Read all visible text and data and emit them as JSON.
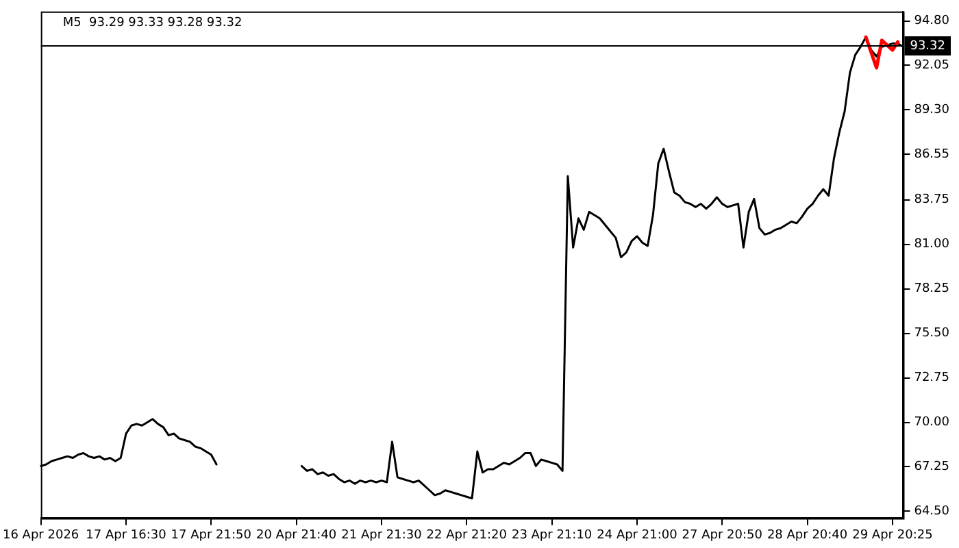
{
  "chart_data": {
    "type": "line",
    "title": "M5  93.29 93.33 93.28 93.32",
    "categories": [
      "16 Apr 2026",
      null,
      null,
      null,
      null,
      null,
      null,
      null,
      null,
      null,
      null,
      null,
      null,
      null,
      null,
      null,
      "17 Apr 16:30",
      null,
      null,
      null,
      null,
      null,
      null,
      null,
      null,
      null,
      null,
      null,
      null,
      null,
      null,
      null,
      "17 Apr 21:50",
      null,
      null,
      null,
      null,
      null,
      null,
      null,
      null,
      null,
      null,
      null,
      null,
      null,
      null,
      null,
      "20 Apr 21:40",
      null,
      null,
      null,
      null,
      null,
      null,
      null,
      null,
      null,
      null,
      null,
      null,
      null,
      null,
      null,
      "21 Apr 21:30",
      null,
      null,
      null,
      null,
      null,
      null,
      null,
      null,
      null,
      null,
      null,
      null,
      null,
      null,
      null,
      "22 Apr 21:20",
      null,
      null,
      null,
      null,
      null,
      null,
      null,
      null,
      null,
      null,
      null,
      null,
      null,
      null,
      null,
      "23 Apr 21:10",
      null,
      null,
      null,
      null,
      null,
      null,
      null,
      null,
      null,
      null,
      null,
      null,
      null,
      null,
      null,
      "24 Apr 21:00",
      null,
      null,
      null,
      null,
      null,
      null,
      null,
      null,
      null,
      null,
      null,
      null,
      null,
      null,
      null,
      "27 Apr 20:50",
      null,
      null,
      null,
      null,
      null,
      null,
      null,
      null,
      null,
      null,
      null,
      null,
      null,
      null,
      null,
      "28 Apr 20:40",
      null,
      null,
      null,
      null,
      null,
      null,
      null,
      null,
      null,
      null,
      null,
      null,
      null,
      null,
      null,
      "29 Apr 20:25",
      null,
      null
    ],
    "series": [
      {
        "color": "#000000",
        "values": [
          67.3,
          67.4,
          67.6,
          67.7,
          67.8,
          67.9,
          67.8,
          68.0,
          68.1,
          67.9,
          67.8,
          67.9,
          67.7,
          67.8,
          67.6,
          67.8,
          69.3,
          69.8,
          69.9,
          69.8,
          70.0,
          70.2,
          69.9,
          69.7,
          69.2,
          69.3,
          69.0,
          68.9,
          68.8,
          68.5,
          68.4,
          68.2,
          68.0,
          67.4,
          null,
          null,
          null,
          null,
          null,
          null,
          null,
          null,
          null,
          null,
          null,
          null,
          null,
          null,
          null,
          67.3,
          67.0,
          67.1,
          66.8,
          66.9,
          66.7,
          66.8,
          66.5,
          66.3,
          66.4,
          66.2,
          66.4,
          66.3,
          66.4,
          66.3,
          66.4,
          66.3,
          68.8,
          66.6,
          66.5,
          66.4,
          66.3,
          66.4,
          66.1,
          65.8,
          65.5,
          65.6,
          65.8,
          65.7,
          65.6,
          65.5,
          65.4,
          65.3,
          68.2,
          66.9,
          67.1,
          67.1,
          67.3,
          67.5,
          67.4,
          67.6,
          67.8,
          68.1,
          68.1,
          67.3,
          67.7,
          67.6,
          67.5,
          67.4,
          67.0,
          85.2,
          80.8,
          82.6,
          81.9,
          83.0,
          82.8,
          82.6,
          82.2,
          81.8,
          81.4,
          80.2,
          80.5,
          81.2,
          81.5,
          81.1,
          80.9,
          82.8,
          86.0,
          86.9,
          85.5,
          84.2,
          84.0,
          83.6,
          83.5,
          83.3,
          83.5,
          83.2,
          83.5,
          83.9,
          83.5,
          83.3,
          83.4,
          83.5,
          80.8,
          83.0,
          83.8,
          82.0,
          81.6,
          81.7,
          81.9,
          82.0,
          82.2,
          82.4,
          82.3,
          82.7,
          83.2,
          83.5,
          84.0,
          84.4,
          84.0,
          86.3,
          87.9,
          89.2,
          91.6,
          92.7,
          93.2,
          93.8,
          93.0,
          92.6,
          93.2,
          93.3,
          93.4,
          93.4,
          93.2
        ]
      },
      {
        "color": "#ff0000",
        "values": [
          null,
          null,
          null,
          null,
          null,
          null,
          null,
          null,
          null,
          null,
          null,
          null,
          null,
          null,
          null,
          null,
          null,
          null,
          null,
          null,
          null,
          null,
          null,
          null,
          null,
          null,
          null,
          null,
          null,
          null,
          null,
          null,
          null,
          null,
          null,
          null,
          null,
          null,
          null,
          null,
          null,
          null,
          null,
          null,
          null,
          null,
          null,
          null,
          null,
          null,
          null,
          null,
          null,
          null,
          null,
          null,
          null,
          null,
          null,
          null,
          null,
          null,
          null,
          null,
          null,
          null,
          null,
          null,
          null,
          null,
          null,
          null,
          null,
          null,
          null,
          null,
          null,
          null,
          null,
          null,
          null,
          null,
          null,
          null,
          null,
          null,
          null,
          null,
          null,
          null,
          null,
          null,
          null,
          null,
          null,
          null,
          null,
          null,
          null,
          null,
          null,
          null,
          null,
          null,
          null,
          null,
          null,
          null,
          null,
          null,
          null,
          null,
          null,
          null,
          null,
          null,
          null,
          null,
          null,
          null,
          null,
          null,
          null,
          null,
          null,
          null,
          null,
          null,
          null,
          null,
          null,
          null,
          null,
          null,
          null,
          null,
          null,
          null,
          null,
          null,
          null,
          null,
          null,
          null,
          null,
          null,
          null,
          null,
          null,
          null,
          null,
          null,
          null,
          null,
          null,
          93.8,
          null,
          91.9,
          93.6,
          null,
          93.0,
          93.5,
          null
        ]
      }
    ],
    "ylim": [
      64.08,
      95.38
    ],
    "yticks": [
      {
        "value": 94.8,
        "label": "94.80"
      },
      {
        "value": 92.05,
        "label": "92.05"
      },
      {
        "value": 89.3,
        "label": "89.30"
      },
      {
        "value": 86.55,
        "label": "86.55"
      },
      {
        "value": 83.75,
        "label": "83.75"
      },
      {
        "value": 81.0,
        "label": "81.00"
      },
      {
        "value": 78.25,
        "label": "78.25"
      },
      {
        "value": 75.5,
        "label": "75.50"
      },
      {
        "value": 72.75,
        "label": "72.75"
      },
      {
        "value": 70.0,
        "label": "70.00"
      },
      {
        "value": 67.25,
        "label": "67.25"
      },
      {
        "value": 64.5,
        "label": "64.50"
      }
    ],
    "ref_lines": [
      {
        "axis": "y",
        "value": 93.32,
        "label": "93.32",
        "color": "#000000"
      }
    ],
    "grid": false,
    "legend": false,
    "marker": "none",
    "line_style": "solid"
  }
}
